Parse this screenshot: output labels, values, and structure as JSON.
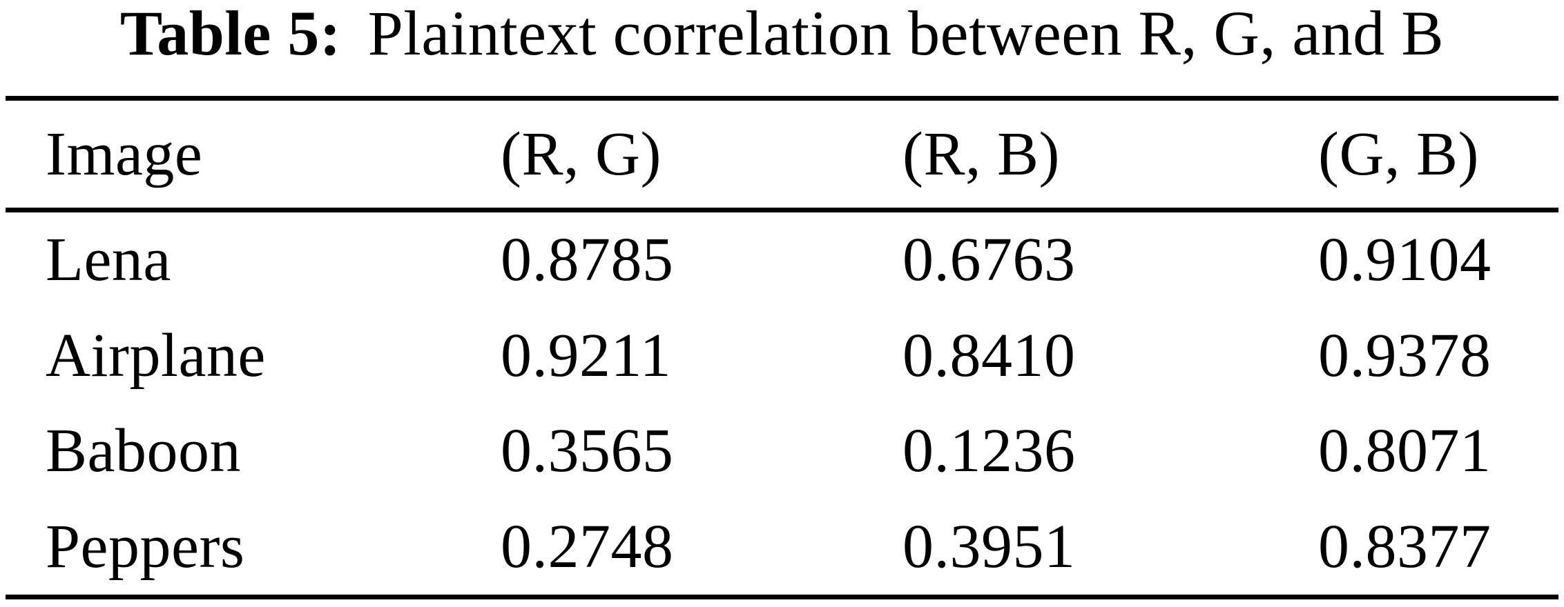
{
  "page": {
    "background_color": "#ffffff",
    "text_color": "#000000"
  },
  "table": {
    "title_label": "Table 5:",
    "title_text": "Plaintext correlation between R, G, and B",
    "columns": [
      "Image",
      "(R, G)",
      "(R, B)",
      "(G, B)"
    ],
    "rows": [
      [
        "Lena",
        "0.8785",
        "0.6763",
        "0.9104"
      ],
      [
        "Airplane",
        "0.9211",
        "0.8410",
        "0.9378"
      ],
      [
        "Baboon",
        "0.3565",
        "0.1236",
        "0.8071"
      ],
      [
        "Peppers",
        "0.2748",
        "0.3951",
        "0.8377"
      ]
    ]
  },
  "chart_data": {
    "type": "table",
    "title": "Table 5: Plaintext correlation between R, G, and B",
    "columns": [
      "Image",
      "(R, G)",
      "(R, B)",
      "(G, B)"
    ],
    "rows": [
      {
        "image": "Lena",
        "r_g": 0.8785,
        "r_b": 0.6763,
        "g_b": 0.9104
      },
      {
        "image": "Airplane",
        "r_g": 0.9211,
        "r_b": 0.841,
        "g_b": 0.9378
      },
      {
        "image": "Baboon",
        "r_g": 0.3565,
        "r_b": 0.1236,
        "g_b": 0.8071
      },
      {
        "image": "Peppers",
        "r_g": 0.2748,
        "r_b": 0.3951,
        "g_b": 0.8377
      }
    ]
  }
}
